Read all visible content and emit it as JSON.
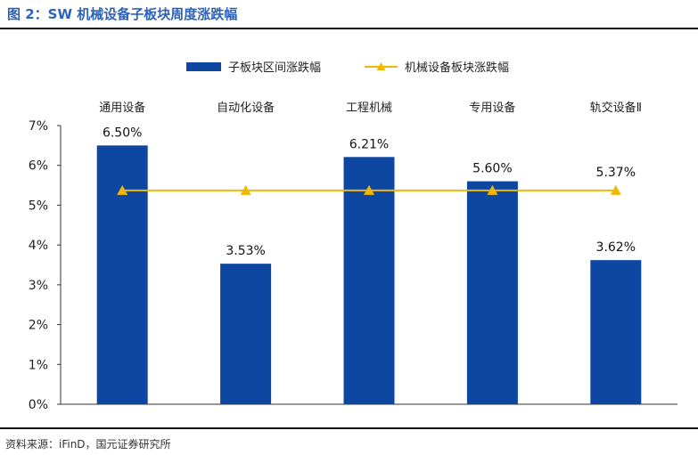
{
  "figure": {
    "title": "图 2：SW 机械设备子板块周度涨跌幅",
    "source": "资料来源：iFinD，国元证券研究所"
  },
  "colors": {
    "bar": "#0D47A1",
    "line": "#F2B705",
    "title": "#2E62B8",
    "axis": "#333333"
  },
  "chart_data": {
    "type": "bar",
    "categories": [
      "通用设备",
      "自动化设备",
      "工程机械",
      "专用设备",
      "轨交设备Ⅱ"
    ],
    "series": [
      {
        "name": "子板块区间涨跌幅",
        "type": "bar",
        "values": [
          6.5,
          3.53,
          6.21,
          5.6,
          3.62
        ]
      },
      {
        "name": "机械设备板块涨跌幅",
        "type": "line",
        "values": [
          5.37,
          5.37,
          5.37,
          5.37,
          5.37
        ]
      }
    ],
    "data_labels": [
      "6.50%",
      "3.53%",
      "6.21%",
      "5.60%",
      "5.37%",
      "3.62%"
    ],
    "yticks": [
      "0%",
      "1%",
      "2%",
      "3%",
      "4%",
      "5%",
      "6%",
      "7%"
    ],
    "ylim": [
      0,
      7
    ],
    "legend_position": "top-center",
    "category_labels_position": "top",
    "grid": false
  }
}
